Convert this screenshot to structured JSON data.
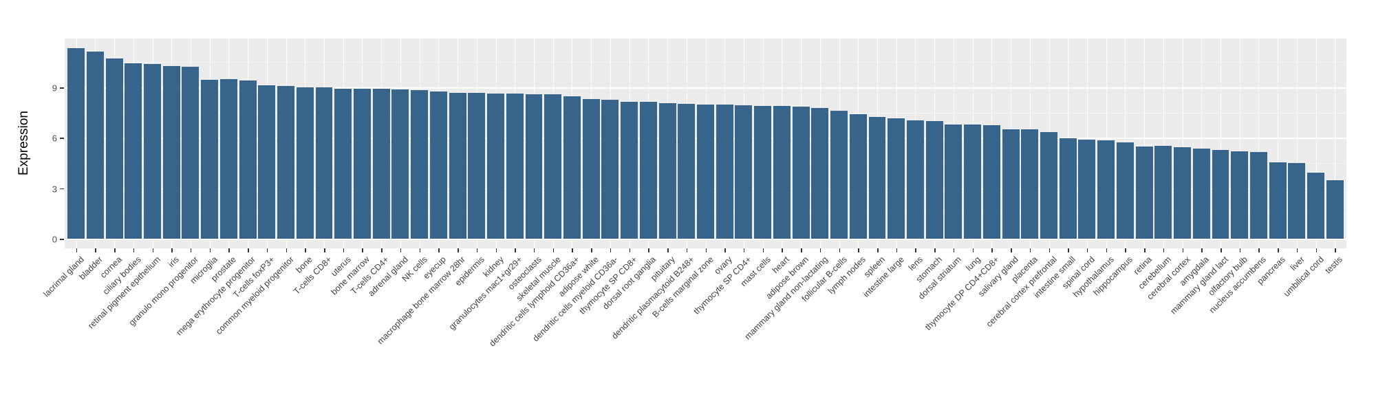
{
  "chart_data": {
    "type": "bar",
    "title": "",
    "xlabel": "",
    "ylabel": "Expression",
    "yticks": [
      0,
      3,
      6,
      9
    ],
    "ylim": [
      -0.57,
      11.91
    ],
    "grid": "on",
    "legend": "none",
    "x_tick_rotation": 45,
    "bar_color": "#36648B",
    "panel_bg": "#EBEBEB",
    "grid_color": "#FFFFFF",
    "categories": [
      "lacrimal gland",
      "bladder",
      "cornea",
      "ciliary bodies",
      "retinal pigment epithelium",
      "iris",
      "granulo mono progenitor",
      "microglia",
      "prostate",
      "mega erythrocyte progenitor",
      "T-cells foxP3+",
      "common myeloid progenitor",
      "bone",
      "T-cells CD8+",
      "uterus",
      "bone marrow",
      "T-cells CD4+",
      "adrenal gland",
      "NK cells",
      "eyecup",
      "macrophage bone marrow 28hr",
      "epidermis",
      "kidney",
      "granulocytes mac1+gr29+",
      "osteoclasts",
      "skeletal muscle",
      "dendritic cells lymphoid CD36a+",
      "adipose white",
      "dendritic cells myeloid CD36a-",
      "thymocyte SP CD8+",
      "dorsal root ganglia",
      "pituitary",
      "dendritic plasmacytoid B248+",
      "B-cells marginal zone",
      "ovary",
      "thymocyte SP CD4+",
      "mast cells",
      "heart",
      "adipose brown",
      "mammary gland non-lactating",
      "follicular B-cells",
      "lymph nodes",
      "spleen",
      "intestine large",
      "lens",
      "stomach",
      "dorsal striatum",
      "lung",
      "thymocyte DP CD4+CD8+",
      "salivary gland",
      "placenta",
      "cerebral cortex prefrontal",
      "intestine small",
      "spinal cord",
      "hypothalamus",
      "hippocampus",
      "retina",
      "cerebellum",
      "cerebral cortex",
      "amygdala",
      "mammary gland lact",
      "olfactory bulb",
      "nucleus accumbens",
      "pancreas",
      "liver",
      "umbilical cord",
      "testis"
    ],
    "values": [
      11.34,
      11.12,
      10.72,
      10.45,
      10.4,
      10.26,
      10.25,
      9.45,
      9.48,
      9.42,
      9.14,
      9.09,
      9.0,
      9.0,
      8.93,
      8.92,
      8.93,
      8.9,
      8.85,
      8.76,
      8.68,
      8.66,
      8.65,
      8.64,
      8.6,
      8.61,
      8.46,
      8.32,
      8.25,
      8.16,
      8.15,
      8.06,
      8.01,
      7.97,
      7.99,
      7.94,
      7.91,
      7.9,
      7.84,
      7.79,
      7.63,
      7.42,
      7.26,
      7.18,
      7.04,
      6.99,
      6.81,
      6.8,
      6.76,
      6.5,
      6.49,
      6.35,
      5.96,
      5.88,
      5.86,
      5.72,
      5.5,
      5.51,
      5.44,
      5.35,
      5.28,
      5.2,
      5.14,
      4.56,
      4.52,
      3.95,
      3.5
    ]
  }
}
